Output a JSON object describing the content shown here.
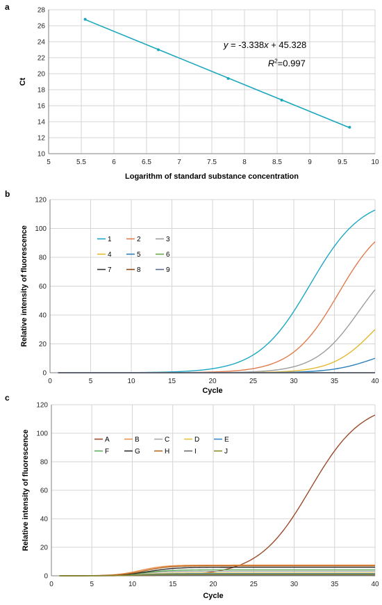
{
  "chart_data": [
    {
      "panel": "a",
      "type": "scatter",
      "xlabel": "Logarithm of standard substance concentration",
      "ylabel": "Ct",
      "xlim": [
        5,
        10
      ],
      "ylim": [
        10,
        28
      ],
      "xticks": [
        5,
        5.5,
        6,
        6.5,
        7,
        7.5,
        8,
        8.5,
        9,
        9.5,
        10
      ],
      "yticks": [
        10,
        12,
        14,
        16,
        18,
        20,
        22,
        24,
        26,
        28
      ],
      "grid": true,
      "points": [
        {
          "x": 5.56,
          "y": 26.8
        },
        {
          "x": 6.68,
          "y": 23.0
        },
        {
          "x": 7.75,
          "y": 19.4
        },
        {
          "x": 8.57,
          "y": 16.7
        },
        {
          "x": 9.61,
          "y": 13.3
        }
      ],
      "trendline": {
        "slope": -3.338,
        "intercept": 45.328
      },
      "equation": {
        "y": "y",
        "eq": " = -3.338",
        "x": "x",
        "rest": " + 45.328"
      },
      "r2": {
        "R": "R",
        "sup": "2",
        "val": "=0.997"
      },
      "color": "#1aa7bd"
    },
    {
      "panel": "b",
      "type": "line",
      "xlabel": "Cycle",
      "ylabel": "Relative intensity of fluorescence",
      "xlim": [
        0,
        40
      ],
      "ylim": [
        0,
        120
      ],
      "xticks": [
        0,
        5,
        10,
        15,
        20,
        25,
        30,
        35,
        40
      ],
      "yticks": [
        0,
        20,
        40,
        60,
        80,
        100,
        120
      ],
      "grid": true,
      "legend_position": "left-middle",
      "series": [
        {
          "name": "1",
          "color": "#1aa7c4",
          "plateau": 122,
          "mid": 32.0,
          "k": 3.2,
          "base": 0,
          "kind": "sigmoid"
        },
        {
          "name": "2",
          "color": "#e07b4c",
          "plateau": 110,
          "mid": 35.5,
          "k": 2.9,
          "base": 0,
          "kind": "sigmoid"
        },
        {
          "name": "3",
          "color": "#9c9c9c",
          "plateau": 85,
          "mid": 38.0,
          "k": 2.7,
          "base": 0,
          "kind": "sigmoid"
        },
        {
          "name": "4",
          "color": "#e3b82e",
          "plateau": 60,
          "mid": 40.0,
          "k": 2.6,
          "base": 0,
          "kind": "sigmoid"
        },
        {
          "name": "5",
          "color": "#2c7fb8",
          "plateau": 20,
          "mid": 40.0,
          "k": 2.6,
          "base": 0,
          "kind": "sigmoid"
        },
        {
          "name": "6",
          "color": "#6aa84f",
          "plateau": 0,
          "mid": 40,
          "k": 3,
          "base": 0,
          "kind": "sigmoid"
        },
        {
          "name": "7",
          "color": "#333333",
          "plateau": 0,
          "mid": 40,
          "k": 3,
          "base": 0,
          "kind": "sigmoid"
        },
        {
          "name": "8",
          "color": "#8b4513",
          "plateau": 0,
          "mid": 40,
          "k": 3,
          "base": 0,
          "kind": "sigmoid"
        },
        {
          "name": "9",
          "color": "#5a6a8a",
          "plateau": 0,
          "mid": 40,
          "k": 3,
          "base": 0,
          "kind": "sigmoid"
        }
      ]
    },
    {
      "panel": "c",
      "type": "line",
      "xlabel": "Cycle",
      "ylabel": "Relative intensity of fluorescence",
      "xlim": [
        0,
        40
      ],
      "ylim": [
        0,
        120
      ],
      "xticks": [
        0,
        5,
        10,
        15,
        20,
        25,
        30,
        35,
        40
      ],
      "yticks": [
        0,
        20,
        40,
        60,
        80,
        100,
        120
      ],
      "grid": true,
      "legend_position": "left-top",
      "series": [
        {
          "name": "A",
          "color": "#9c4a2a",
          "plateau": 122,
          "mid": 32.0,
          "k": 3.2,
          "base": 0,
          "kind": "sigmoid"
        },
        {
          "name": "B",
          "color": "#e8914e",
          "plateau": 7.5,
          "mid": 11.0,
          "k": 1.5,
          "base": 0,
          "kind": "sigmoid"
        },
        {
          "name": "C",
          "color": "#a8a8a8",
          "plateau": 3.2,
          "mid": 11.0,
          "k": 1.6,
          "base": 0,
          "kind": "sigmoid"
        },
        {
          "name": "D",
          "color": "#e6c23a",
          "plateau": 2.0,
          "mid": 11.0,
          "k": 1.6,
          "base": 0,
          "kind": "sigmoid"
        },
        {
          "name": "E",
          "color": "#3b86c6",
          "plateau": 1.5,
          "mid": 11.0,
          "k": 1.6,
          "base": 0,
          "kind": "sigmoid"
        },
        {
          "name": "F",
          "color": "#5fae5a",
          "plateau": 4.2,
          "mid": 11.5,
          "k": 1.6,
          "base": 0,
          "kind": "sigmoid"
        },
        {
          "name": "G",
          "color": "#2b2b2b",
          "plateau": 6.0,
          "mid": 12.0,
          "k": 1.7,
          "base": 0,
          "kind": "sigmoid"
        },
        {
          "name": "H",
          "color": "#b5651d",
          "plateau": 7.0,
          "mid": 11.5,
          "k": 1.5,
          "base": 0,
          "kind": "sigmoid"
        },
        {
          "name": "I",
          "color": "#6a6a6a",
          "plateau": 0.5,
          "mid": 11.0,
          "k": 1.6,
          "base": 0,
          "kind": "sigmoid"
        },
        {
          "name": "J",
          "color": "#8a8a2a",
          "plateau": 1.0,
          "mid": 11.0,
          "k": 1.6,
          "base": 0,
          "kind": "sigmoid"
        }
      ]
    }
  ]
}
